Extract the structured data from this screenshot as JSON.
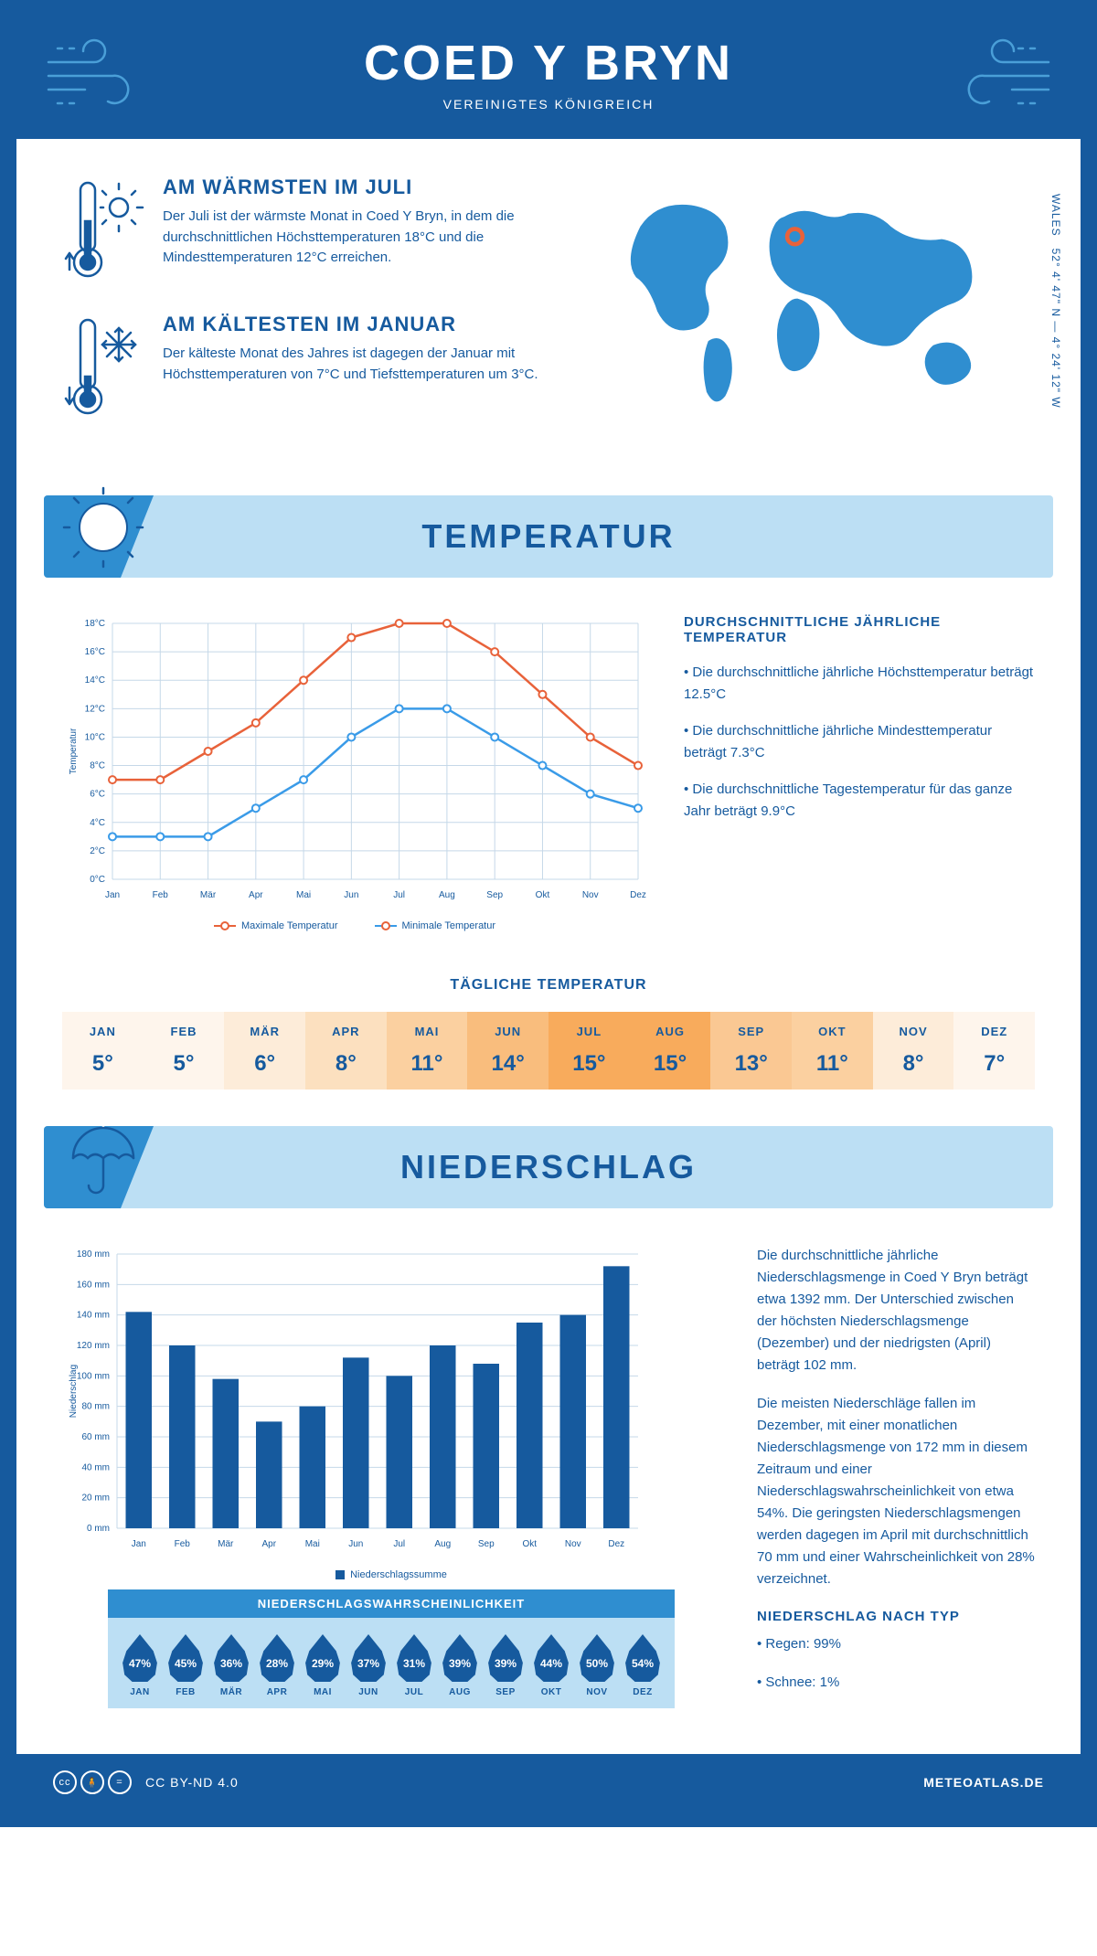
{
  "header": {
    "title": "COED Y BRYN",
    "subtitle": "VEREINIGTES KÖNIGREICH",
    "coords": "52° 4' 47\" N — 4° 24' 12\" W",
    "region": "WALES"
  },
  "colors": {
    "primary": "#165a9e",
    "accent": "#2f8ed0",
    "light": "#bcdff4",
    "max_line": "#e8623a",
    "min_line": "#3a9be8",
    "bar": "#165a9e",
    "grid": "#c5d8e8"
  },
  "facts": {
    "warm": {
      "title": "AM WÄRMSTEN IM JULI",
      "text": "Der Juli ist der wärmste Monat in Coed Y Bryn, in dem die durchschnittlichen Höchsttemperaturen 18°C und die Mindesttemperaturen 12°C erreichen."
    },
    "cold": {
      "title": "AM KÄLTESTEN IM JANUAR",
      "text": "Der kälteste Monat des Jahres ist dagegen der Januar mit Höchsttemperaturen von 7°C und Tiefsttemperaturen um 3°C."
    }
  },
  "sections": {
    "temp": "TEMPERATUR",
    "precip": "NIEDERSCHLAG"
  },
  "temp_chart": {
    "months": [
      "Jan",
      "Feb",
      "Mär",
      "Apr",
      "Mai",
      "Jun",
      "Jul",
      "Aug",
      "Sep",
      "Okt",
      "Nov",
      "Dez"
    ],
    "max": [
      7,
      7,
      9,
      11,
      14,
      17,
      18,
      18,
      16,
      13,
      10,
      8
    ],
    "min": [
      3,
      3,
      3,
      5,
      7,
      10,
      12,
      12,
      10,
      8,
      6,
      5
    ],
    "ylim": [
      0,
      18
    ],
    "ystep": 2,
    "ylabel": "Temperatur",
    "legend_max": "Maximale Temperatur",
    "legend_min": "Minimale Temperatur"
  },
  "temp_info": {
    "title": "DURCHSCHNITTLICHE JÄHRLICHE TEMPERATUR",
    "p1": "• Die durchschnittliche jährliche Höchsttemperatur beträgt 12.5°C",
    "p2": "• Die durchschnittliche jährliche Mindesttemperatur beträgt 7.3°C",
    "p3": "• Die durchschnittliche Tagestemperatur für das ganze Jahr beträgt 9.9°C"
  },
  "daily": {
    "title": "TÄGLICHE TEMPERATUR",
    "months": [
      "JAN",
      "FEB",
      "MÄR",
      "APR",
      "MAI",
      "JUN",
      "JUL",
      "AUG",
      "SEP",
      "OKT",
      "NOV",
      "DEZ"
    ],
    "temps": [
      "5°",
      "5°",
      "6°",
      "8°",
      "11°",
      "14°",
      "15°",
      "15°",
      "13°",
      "11°",
      "8°",
      "7°"
    ],
    "colors": [
      "#fef5ec",
      "#fef5ec",
      "#fdecd9",
      "#fce0bf",
      "#fbd0a0",
      "#f9bd7d",
      "#f8ab5c",
      "#f8ab5c",
      "#fac893",
      "#fbd0a0",
      "#fdecd9",
      "#fef5ec"
    ]
  },
  "precip_chart": {
    "months": [
      "Jan",
      "Feb",
      "Mär",
      "Apr",
      "Mai",
      "Jun",
      "Jul",
      "Aug",
      "Sep",
      "Okt",
      "Nov",
      "Dez"
    ],
    "values": [
      142,
      120,
      98,
      70,
      80,
      112,
      100,
      120,
      108,
      135,
      140,
      172
    ],
    "ylim": [
      0,
      180
    ],
    "ystep": 20,
    "ylabel": "Niederschlag",
    "legend": "Niederschlagssumme"
  },
  "precip_info": {
    "p1": "Die durchschnittliche jährliche Niederschlagsmenge in Coed Y Bryn beträgt etwa 1392 mm. Der Unterschied zwischen der höchsten Niederschlagsmenge (Dezember) und der niedrigsten (April) beträgt 102 mm.",
    "p2": "Die meisten Niederschläge fallen im Dezember, mit einer monatlichen Niederschlagsmenge von 172 mm in diesem Zeitraum und einer Niederschlagswahrscheinlichkeit von etwa 54%. Die geringsten Niederschlagsmengen werden dagegen im April mit durchschnittlich 70 mm und einer Wahrscheinlichkeit von 28% verzeichnet.",
    "type_title": "NIEDERSCHLAG NACH TYP",
    "type1": "• Regen: 99%",
    "type2": "• Schnee: 1%"
  },
  "probability": {
    "title": "NIEDERSCHLAGSWAHRSCHEINLICHKEIT",
    "months": [
      "JAN",
      "FEB",
      "MÄR",
      "APR",
      "MAI",
      "JUN",
      "JUL",
      "AUG",
      "SEP",
      "OKT",
      "NOV",
      "DEZ"
    ],
    "values": [
      "47%",
      "45%",
      "36%",
      "28%",
      "29%",
      "37%",
      "31%",
      "39%",
      "39%",
      "44%",
      "50%",
      "54%"
    ]
  },
  "footer": {
    "license": "CC BY-ND 4.0",
    "site": "METEOATLAS.DE"
  }
}
